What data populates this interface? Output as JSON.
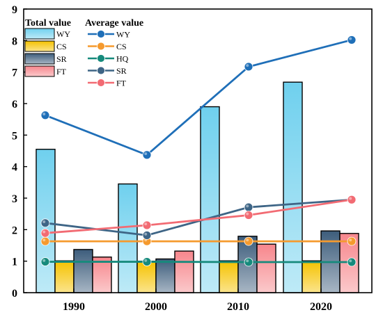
{
  "chart_data": {
    "type": "bar",
    "categories": [
      "1990",
      "2000",
      "2010",
      "2020"
    ],
    "ylim": [
      0,
      9
    ],
    "yticks": [
      0,
      1,
      2,
      3,
      4,
      5,
      6,
      7,
      8,
      9
    ],
    "grid": false,
    "legend_position": "top-left",
    "bar_group_title": "Total value",
    "line_group_title": "Average value",
    "bar_series": [
      {
        "name": "WY",
        "color": "#6fd0ee",
        "values": [
          4.55,
          3.45,
          5.9,
          6.68
        ]
      },
      {
        "name": "CS",
        "color": "#f5c200",
        "values": [
          1.01,
          1.0,
          1.01,
          1.01
        ]
      },
      {
        "name": "SR",
        "color": "#3d5d7c",
        "values": [
          1.37,
          1.07,
          1.79,
          1.96
        ]
      },
      {
        "name": "FT",
        "color": "#f7868c",
        "values": [
          1.13,
          1.32,
          1.54,
          1.88
        ]
      }
    ],
    "line_series": [
      {
        "name": "WY",
        "color": "#1f6fb8",
        "values": [
          5.63,
          4.37,
          7.17,
          8.02
        ]
      },
      {
        "name": "CS",
        "color": "#f59a2e",
        "values": [
          1.63,
          1.63,
          1.63,
          1.63
        ]
      },
      {
        "name": "HQ",
        "color": "#168a7c",
        "values": [
          0.98,
          0.98,
          0.97,
          0.97
        ]
      },
      {
        "name": "SR",
        "color": "#3e6586",
        "values": [
          2.21,
          1.82,
          2.71,
          2.95
        ]
      },
      {
        "name": "FT",
        "color": "#f26b73",
        "values": [
          1.89,
          2.14,
          2.46,
          2.95
        ]
      }
    ]
  }
}
